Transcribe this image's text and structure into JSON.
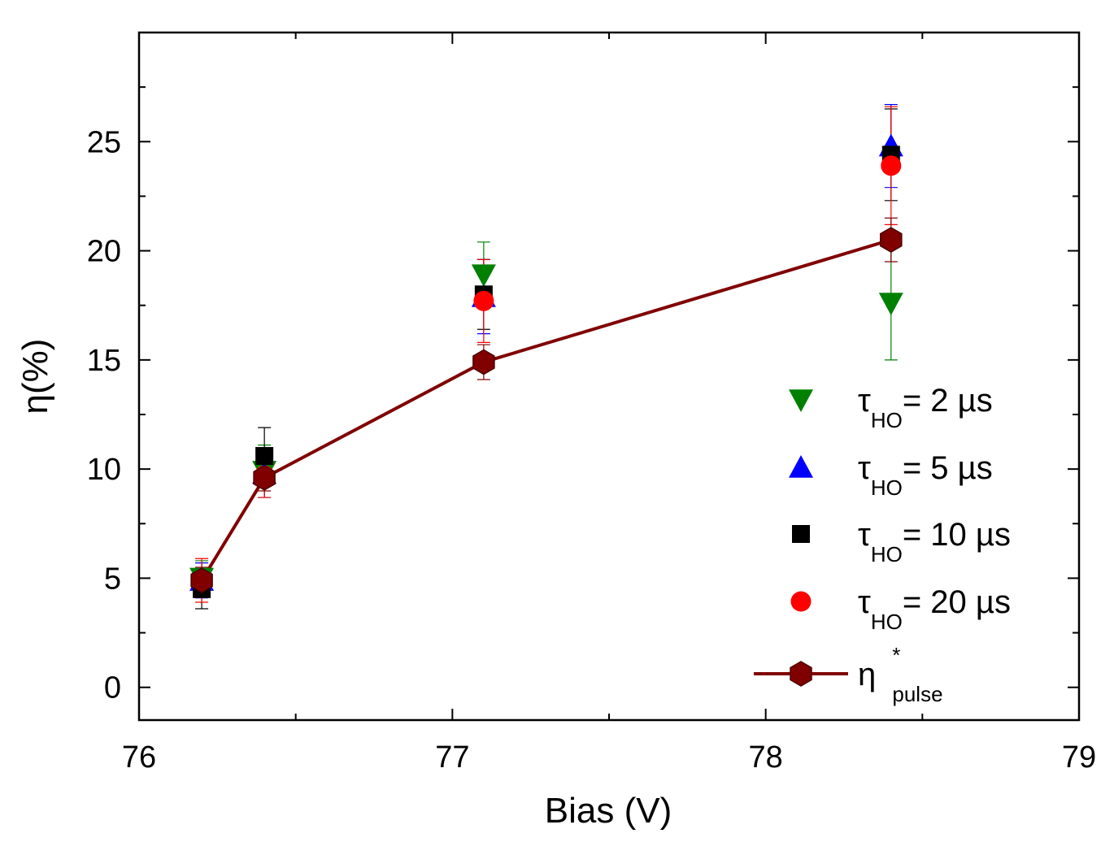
{
  "chart_data": {
    "type": "scatter",
    "xlabel": "Bias (V)",
    "ylabel": "η(%)",
    "xlim": [
      76,
      79
    ],
    "ylim": [
      -1.5,
      30
    ],
    "x_ticks": [
      76,
      77,
      78,
      79
    ],
    "y_ticks": [
      0,
      5,
      10,
      15,
      20,
      25
    ],
    "grid": false,
    "legend_position": "right",
    "series": [
      {
        "name": "τHO= 2 µs",
        "label_main": "τ",
        "label_sub": "HO",
        "label_rest": "= 2 µs",
        "marker": "triangle-down",
        "color": "#008000",
        "line": false,
        "points": [
          {
            "x": 76.2,
            "y": 5.0,
            "err": 0.8
          },
          {
            "x": 76.4,
            "y": 9.9,
            "err": 1.2
          },
          {
            "x": 77.1,
            "y": 18.9,
            "err": 1.5
          },
          {
            "x": 78.4,
            "y": 17.6,
            "err": 2.6
          }
        ]
      },
      {
        "name": "τHO= 5 µs",
        "label_main": "τ",
        "label_sub": "HO",
        "label_rest": "= 5 µs",
        "marker": "triangle-up",
        "color": "#0000ff",
        "line": false,
        "points": [
          {
            "x": 76.2,
            "y": 4.9,
            "err": 0.8
          },
          {
            "x": 76.4,
            "y": 9.8,
            "err": 1.1
          },
          {
            "x": 77.1,
            "y": 17.9,
            "err": 1.7
          },
          {
            "x": 78.4,
            "y": 24.8,
            "err": 1.9
          }
        ]
      },
      {
        "name": "τHO= 10 µs",
        "label_main": "τ",
        "label_sub": "HO",
        "label_rest": "= 10 µs",
        "marker": "square",
        "color": "#000000",
        "line": false,
        "points": [
          {
            "x": 76.2,
            "y": 4.5,
            "err": 0.9
          },
          {
            "x": 76.4,
            "y": 10.6,
            "err": 1.3
          },
          {
            "x": 77.1,
            "y": 18.0,
            "err": 1.6
          },
          {
            "x": 78.4,
            "y": 24.4,
            "err": 2.1
          }
        ]
      },
      {
        "name": "τHO= 20 µs",
        "label_main": "τ",
        "label_sub": "HO",
        "label_rest": "= 20 µs",
        "marker": "circle",
        "color": "#ff0000",
        "line": false,
        "points": [
          {
            "x": 76.2,
            "y": 4.9,
            "err": 1.0
          },
          {
            "x": 76.4,
            "y": 9.7,
            "err": 1.0
          },
          {
            "x": 77.1,
            "y": 17.7,
            "err": 1.9
          },
          {
            "x": 78.4,
            "y": 23.9,
            "err": 2.7
          }
        ]
      },
      {
        "name": "η*pulse",
        "label_main": "η",
        "label_sup": "*",
        "label_sub": "pulse",
        "label_rest": "",
        "marker": "hexagon",
        "color": "#800000",
        "line": true,
        "points": [
          {
            "x": 76.2,
            "y": 4.9,
            "err": 0.6
          },
          {
            "x": 76.4,
            "y": 9.6,
            "err": 0.6
          },
          {
            "x": 77.1,
            "y": 14.9,
            "err": 0.8
          },
          {
            "x": 78.4,
            "y": 20.5,
            "err": 1.0
          }
        ]
      }
    ]
  }
}
